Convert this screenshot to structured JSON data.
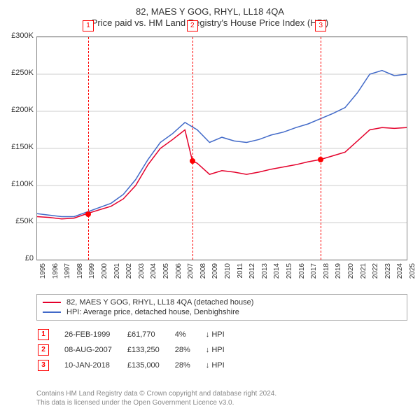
{
  "title1": "82, MAES Y GOG, RHYL, LL18 4QA",
  "title2": "Price paid vs. HM Land Registry's House Price Index (HPI)",
  "chart": {
    "type": "line",
    "background_color": "#ffffff",
    "grid_color": "#cccccc",
    "series_colors": {
      "property": "#e4002b",
      "hpi": "#4169c8"
    },
    "x_start": 1995,
    "x_end": 2025,
    "x_ticks": [
      1995,
      1996,
      1997,
      1998,
      1999,
      2000,
      2001,
      2002,
      2003,
      2004,
      2005,
      2006,
      2007,
      2008,
      2009,
      2010,
      2011,
      2012,
      2013,
      2014,
      2015,
      2016,
      2017,
      2018,
      2019,
      2020,
      2021,
      2022,
      2023,
      2024,
      2025
    ],
    "y_min": 0,
    "y_max": 300000,
    "y_ticks": [
      0,
      50000,
      100000,
      150000,
      200000,
      250000,
      300000
    ],
    "y_tick_labels": [
      "£0",
      "£50K",
      "£100K",
      "£150K",
      "£200K",
      "£250K",
      "£300K"
    ],
    "property_series": [
      [
        1995,
        58000
      ],
      [
        1996,
        57000
      ],
      [
        1997,
        55000
      ],
      [
        1998,
        56000
      ],
      [
        1999,
        61770
      ],
      [
        2000,
        67000
      ],
      [
        2001,
        72000
      ],
      [
        2002,
        82000
      ],
      [
        2003,
        100000
      ],
      [
        2004,
        128000
      ],
      [
        2005,
        150000
      ],
      [
        2006,
        162000
      ],
      [
        2007,
        175000
      ],
      [
        2007.6,
        133250
      ],
      [
        2008,
        130000
      ],
      [
        2009,
        115000
      ],
      [
        2010,
        120000
      ],
      [
        2011,
        118000
      ],
      [
        2012,
        115000
      ],
      [
        2013,
        118000
      ],
      [
        2014,
        122000
      ],
      [
        2015,
        125000
      ],
      [
        2016,
        128000
      ],
      [
        2017,
        132000
      ],
      [
        2018,
        135000
      ],
      [
        2019,
        140000
      ],
      [
        2020,
        145000
      ],
      [
        2021,
        160000
      ],
      [
        2022,
        175000
      ],
      [
        2023,
        178000
      ],
      [
        2024,
        177000
      ],
      [
        2025,
        178000
      ]
    ],
    "hpi_series": [
      [
        1995,
        62000
      ],
      [
        1996,
        60000
      ],
      [
        1997,
        58000
      ],
      [
        1998,
        58000
      ],
      [
        1999,
        64000
      ],
      [
        2000,
        70000
      ],
      [
        2001,
        76000
      ],
      [
        2002,
        88000
      ],
      [
        2003,
        108000
      ],
      [
        2004,
        135000
      ],
      [
        2005,
        158000
      ],
      [
        2006,
        170000
      ],
      [
        2007,
        185000
      ],
      [
        2008,
        175000
      ],
      [
        2009,
        158000
      ],
      [
        2010,
        165000
      ],
      [
        2011,
        160000
      ],
      [
        2012,
        158000
      ],
      [
        2013,
        162000
      ],
      [
        2014,
        168000
      ],
      [
        2015,
        172000
      ],
      [
        2016,
        178000
      ],
      [
        2017,
        183000
      ],
      [
        2018,
        190000
      ],
      [
        2019,
        197000
      ],
      [
        2020,
        205000
      ],
      [
        2021,
        225000
      ],
      [
        2022,
        250000
      ],
      [
        2023,
        255000
      ],
      [
        2024,
        248000
      ],
      [
        2025,
        250000
      ]
    ]
  },
  "sales": [
    {
      "n": "1",
      "date": "26-FEB-1999",
      "price": "£61,770",
      "pct": "4%",
      "cmp": "↓ HPI",
      "year": 1999.15,
      "val": 61770
    },
    {
      "n": "2",
      "date": "08-AUG-2007",
      "price": "£133,250",
      "pct": "28%",
      "cmp": "↓ HPI",
      "year": 2007.6,
      "val": 133250
    },
    {
      "n": "3",
      "date": "10-JAN-2018",
      "price": "£135,000",
      "pct": "28%",
      "cmp": "↓ HPI",
      "year": 2018.03,
      "val": 135000
    }
  ],
  "legend": {
    "property": "82, MAES Y GOG, RHYL, LL18 4QA (detached house)",
    "hpi": "HPI: Average price, detached house, Denbighshire"
  },
  "footer1": "Contains HM Land Registry data © Crown copyright and database right 2024.",
  "footer2": "This data is licensed under the Open Government Licence v3.0."
}
